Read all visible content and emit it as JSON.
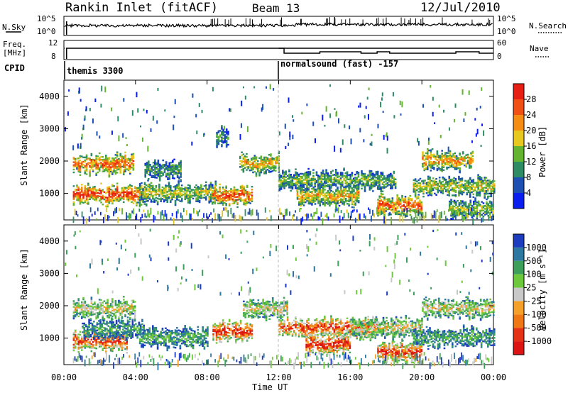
{
  "header": {
    "station": "Rankin Inlet (fitACF)",
    "beam": "Beam 13",
    "date": "12/Jul/2010"
  },
  "panels": {
    "nsky": {
      "left_label": "N.Sky",
      "ticks_left": [
        "10^5",
        "10^0"
      ],
      "ticks_right": [
        "10^5",
        "10^0"
      ],
      "right_label": "N.Search"
    },
    "freq": {
      "left_label_top": "Freq.",
      "left_label_bottom": "[MHz]",
      "ticks_left": [
        "12",
        "8"
      ],
      "ticks_right": [
        "60",
        "0"
      ],
      "right_label": "Nave"
    },
    "cpid": {
      "label": "CPID",
      "segments": [
        {
          "name": "themis 3300",
          "start": "00:00"
        },
        {
          "name": "normalsound (fast) -157",
          "start": "12:00"
        }
      ]
    }
  },
  "x_axis": {
    "label": "Time UT",
    "ticks": [
      "00:00",
      "04:00",
      "08:00",
      "12:00",
      "16:00",
      "20:00",
      "00:00"
    ]
  },
  "chart_data": [
    {
      "type": "heatmap",
      "name": "Power",
      "ylabel": "Slant Range [km]",
      "xlabel": "",
      "y_ticks": [
        "1000",
        "2000",
        "3000",
        "4000"
      ],
      "ylim": [
        180,
        4500
      ],
      "xlim_hours": [
        0,
        24
      ],
      "colorbar": {
        "label": "Power [dB]",
        "ticks": [
          "4",
          "8",
          "12",
          "16",
          "20",
          "24",
          "28"
        ],
        "colors": [
          "#0a1ef0",
          "#1e50b4",
          "#2d8c64",
          "#64b432",
          "#e6c81e",
          "#f58c14",
          "#f05014",
          "#e61e14"
        ]
      },
      "bands": [
        {
          "t_start": 0.5,
          "t_end": 3.9,
          "range_km": 1900,
          "level": 0.75
        },
        {
          "t_start": 0.5,
          "t_end": 4.5,
          "range_km": 950,
          "level": 0.85
        },
        {
          "t_start": 4.2,
          "t_end": 8.5,
          "range_km": 1000,
          "level": 0.5
        },
        {
          "t_start": 4.5,
          "t_end": 6.5,
          "range_km": 1700,
          "level": 0.35
        },
        {
          "t_start": 8.3,
          "t_end": 10.5,
          "range_km": 900,
          "level": 0.8
        },
        {
          "t_start": 9.8,
          "t_end": 12.0,
          "range_km": 1900,
          "level": 0.6
        },
        {
          "t_start": 8.5,
          "t_end": 9.2,
          "range_km": 2700,
          "level": 0.3
        },
        {
          "t_start": 12.0,
          "t_end": 18.5,
          "range_km": 1400,
          "level": 0.4
        },
        {
          "t_start": 13.0,
          "t_end": 16.5,
          "range_km": 900,
          "level": 0.6
        },
        {
          "t_start": 17.5,
          "t_end": 20.0,
          "range_km": 600,
          "level": 0.75
        },
        {
          "t_start": 19.5,
          "t_end": 24.0,
          "range_km": 1200,
          "level": 0.5
        },
        {
          "t_start": 20.0,
          "t_end": 22.8,
          "range_km": 2000,
          "level": 0.65
        },
        {
          "t_start": 21.5,
          "t_end": 24.0,
          "range_km": 500,
          "level": 0.45
        }
      ]
    },
    {
      "type": "heatmap",
      "name": "Velocity",
      "ylabel": "Slant Range [km]",
      "xlabel": "Time UT",
      "y_ticks": [
        "1000",
        "2000",
        "3000",
        "4000"
      ],
      "ylim": [
        180,
        4500
      ],
      "xlim_hours": [
        0,
        24
      ],
      "colorbar": {
        "label": "Velocity [m s⁻¹]",
        "ticks": [
          "1000",
          "500",
          "100",
          "25",
          "-25",
          "-100",
          "-500",
          "-1000"
        ],
        "colors": [
          "#1e3cbe",
          "#2d78a0",
          "#3ca05a",
          "#6ec83c",
          "#c8c8c8",
          "#f5a028",
          "#f07814",
          "#e63214",
          "#dc1414"
        ]
      },
      "bands": [
        {
          "t_start": 0.5,
          "t_end": 4.0,
          "range_km": 1900,
          "level": 0.5
        },
        {
          "t_start": 0.5,
          "t_end": 3.5,
          "range_km": 900,
          "level": 0.8
        },
        {
          "t_start": 1.0,
          "t_end": 4.5,
          "range_km": 1250,
          "level": 0.25
        },
        {
          "t_start": 4.2,
          "t_end": 8.0,
          "range_km": 1000,
          "level": 0.3
        },
        {
          "t_start": 8.3,
          "t_end": 10.5,
          "range_km": 1200,
          "level": 0.85
        },
        {
          "t_start": 10.0,
          "t_end": 12.5,
          "range_km": 1900,
          "level": 0.5
        },
        {
          "t_start": 12.0,
          "t_end": 17.5,
          "range_km": 1300,
          "level": 0.8
        },
        {
          "t_start": 13.5,
          "t_end": 16.0,
          "range_km": 800,
          "level": 0.85
        },
        {
          "t_start": 16.0,
          "t_end": 20.0,
          "range_km": 1300,
          "level": 0.5
        },
        {
          "t_start": 17.5,
          "t_end": 20.0,
          "range_km": 550,
          "level": 0.8
        },
        {
          "t_start": 20.0,
          "t_end": 24.0,
          "range_km": 1900,
          "level": 0.5
        },
        {
          "t_start": 19.5,
          "t_end": 24.0,
          "range_km": 1000,
          "level": 0.3
        }
      ]
    }
  ]
}
